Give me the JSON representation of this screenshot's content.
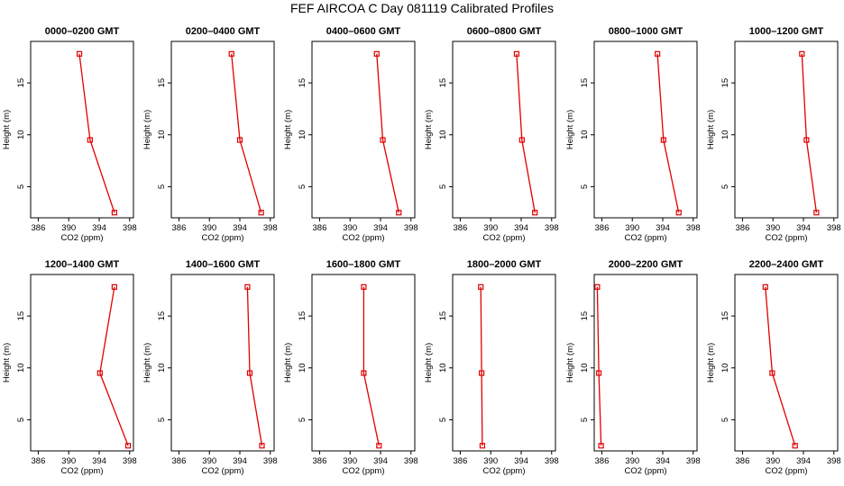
{
  "title": "FEF AIRCOA C  Day 081119  Calibrated Profiles",
  "colors": {
    "line": "#e00000",
    "axis": "#000000"
  },
  "chart_data": [
    {
      "type": "line",
      "title": "0000–0200 GMT",
      "xlabel": "CO2 (ppm)",
      "ylabel": "Height (m)",
      "xlim": [
        385,
        398.5
      ],
      "ylim": [
        2,
        19
      ],
      "xticks": [
        "386",
        "390",
        "394",
        "398"
      ],
      "yticks": [
        "5",
        "10",
        "15"
      ],
      "series": [
        {
          "name": "profile",
          "x": [
            396.0,
            392.8,
            391.4
          ],
          "y": [
            2.5,
            9.5,
            17.8
          ]
        }
      ]
    },
    {
      "type": "line",
      "title": "0200–0400 GMT",
      "xlabel": "CO2 (ppm)",
      "ylabel": "Height (m)",
      "xlim": [
        385,
        398.5
      ],
      "ylim": [
        2,
        19
      ],
      "xticks": [
        "386",
        "390",
        "394",
        "398"
      ],
      "yticks": [
        "5",
        "10",
        "15"
      ],
      "series": [
        {
          "name": "profile",
          "x": [
            396.8,
            394.0,
            392.9
          ],
          "y": [
            2.5,
            9.5,
            17.8
          ]
        }
      ]
    },
    {
      "type": "line",
      "title": "0400–0600 GMT",
      "xlabel": "CO2 (ppm)",
      "ylabel": "Height (m)",
      "xlim": [
        385,
        398.5
      ],
      "ylim": [
        2,
        19
      ],
      "xticks": [
        "386",
        "390",
        "394",
        "398"
      ],
      "yticks": [
        "5",
        "10",
        "15"
      ],
      "series": [
        {
          "name": "profile",
          "x": [
            396.4,
            394.3,
            393.5
          ],
          "y": [
            2.5,
            9.5,
            17.8
          ]
        }
      ]
    },
    {
      "type": "line",
      "title": "0600–0800 GMT",
      "xlabel": "CO2 (ppm)",
      "ylabel": "Height (m)",
      "xlim": [
        385,
        398.5
      ],
      "ylim": [
        2,
        19
      ],
      "xticks": [
        "386",
        "390",
        "394",
        "398"
      ],
      "yticks": [
        "5",
        "10",
        "15"
      ],
      "series": [
        {
          "name": "profile",
          "x": [
            395.8,
            394.1,
            393.4
          ],
          "y": [
            2.5,
            9.5,
            17.8
          ]
        }
      ]
    },
    {
      "type": "line",
      "title": "0800–1000 GMT",
      "xlabel": "CO2 (ppm)",
      "ylabel": "Height (m)",
      "xlim": [
        385,
        398.5
      ],
      "ylim": [
        2,
        19
      ],
      "xticks": [
        "386",
        "390",
        "394",
        "398"
      ],
      "yticks": [
        "5",
        "10",
        "15"
      ],
      "series": [
        {
          "name": "profile",
          "x": [
            396.1,
            394.1,
            393.3
          ],
          "y": [
            2.5,
            9.5,
            17.8
          ]
        }
      ]
    },
    {
      "type": "line",
      "title": "1000–1200 GMT",
      "xlabel": "CO2 (ppm)",
      "ylabel": "Height (m)",
      "xlim": [
        385,
        398.5
      ],
      "ylim": [
        2,
        19
      ],
      "xticks": [
        "386",
        "390",
        "394",
        "398"
      ],
      "yticks": [
        "5",
        "10",
        "15"
      ],
      "series": [
        {
          "name": "profile",
          "x": [
            395.7,
            394.4,
            393.8
          ],
          "y": [
            2.5,
            9.5,
            17.8
          ]
        }
      ]
    },
    {
      "type": "line",
      "title": "1200–1400 GMT",
      "xlabel": "CO2 (ppm)",
      "ylabel": "Height (m)",
      "xlim": [
        385,
        398.5
      ],
      "ylim": [
        2,
        19
      ],
      "xticks": [
        "386",
        "390",
        "394",
        "398"
      ],
      "yticks": [
        "5",
        "10",
        "15"
      ],
      "series": [
        {
          "name": "profile",
          "x": [
            397.8,
            394.1,
            396.0
          ],
          "y": [
            2.5,
            9.5,
            17.8
          ]
        }
      ]
    },
    {
      "type": "line",
      "title": "1400–1600 GMT",
      "xlabel": "CO2 (ppm)",
      "ylabel": "Height (m)",
      "xlim": [
        385,
        398.5
      ],
      "ylim": [
        2,
        19
      ],
      "xticks": [
        "386",
        "390",
        "394",
        "398"
      ],
      "yticks": [
        "5",
        "10",
        "15"
      ],
      "series": [
        {
          "name": "profile",
          "x": [
            396.9,
            395.3,
            395.0
          ],
          "y": [
            2.5,
            9.5,
            17.8
          ]
        }
      ]
    },
    {
      "type": "line",
      "title": "1600–1800 GMT",
      "xlabel": "CO2 (ppm)",
      "ylabel": "Height (m)",
      "xlim": [
        385,
        398.5
      ],
      "ylim": [
        2,
        19
      ],
      "xticks": [
        "386",
        "390",
        "394",
        "398"
      ],
      "yticks": [
        "5",
        "10",
        "15"
      ],
      "series": [
        {
          "name": "profile",
          "x": [
            393.8,
            391.8,
            391.8
          ],
          "y": [
            2.5,
            9.5,
            17.8
          ]
        }
      ]
    },
    {
      "type": "line",
      "title": "1800–2000 GMT",
      "xlabel": "CO2 (ppm)",
      "ylabel": "Height (m)",
      "xlim": [
        385,
        398.5
      ],
      "ylim": [
        2,
        19
      ],
      "xticks": [
        "386",
        "390",
        "394",
        "398"
      ],
      "yticks": [
        "5",
        "10",
        "15"
      ],
      "series": [
        {
          "name": "profile",
          "x": [
            388.9,
            388.8,
            388.7
          ],
          "y": [
            2.5,
            9.5,
            17.8
          ]
        }
      ]
    },
    {
      "type": "line",
      "title": "2000–2200 GMT",
      "xlabel": "CO2 (ppm)",
      "ylabel": "Height (m)",
      "xlim": [
        385,
        398.5
      ],
      "ylim": [
        2,
        19
      ],
      "xticks": [
        "386",
        "390",
        "394",
        "398"
      ],
      "yticks": [
        "5",
        "10",
        "15"
      ],
      "series": [
        {
          "name": "profile",
          "x": [
            385.9,
            385.6,
            385.4
          ],
          "y": [
            2.5,
            9.5,
            17.8
          ]
        }
      ]
    },
    {
      "type": "line",
      "title": "2200–2400 GMT",
      "xlabel": "CO2 (ppm)",
      "ylabel": "Height (m)",
      "xlim": [
        385,
        398.5
      ],
      "ylim": [
        2,
        19
      ],
      "xticks": [
        "386",
        "390",
        "394",
        "398"
      ],
      "yticks": [
        "5",
        "10",
        "15"
      ],
      "series": [
        {
          "name": "profile",
          "x": [
            392.9,
            389.9,
            389.0
          ],
          "y": [
            2.5,
            9.5,
            17.8
          ]
        }
      ]
    }
  ]
}
